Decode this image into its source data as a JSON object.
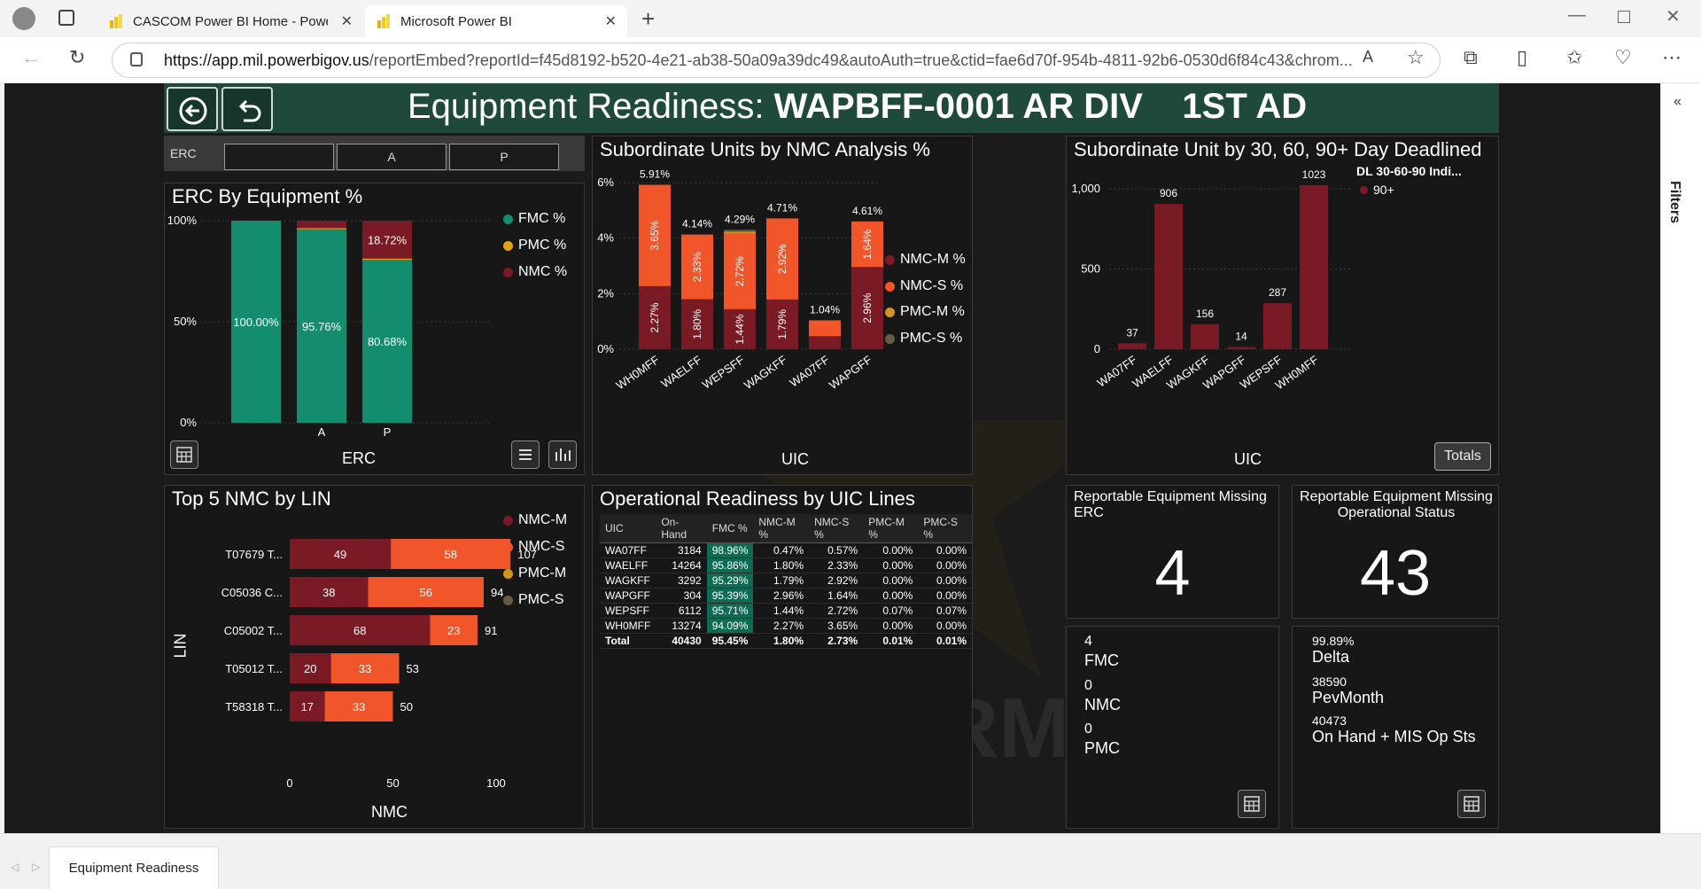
{
  "browser": {
    "tabs": [
      {
        "title": "CASCOM Power BI Home - Power BI"
      },
      {
        "title": "Microsoft Power BI"
      }
    ],
    "url_host": "https://app.mil.powerbigov.us",
    "url_path": "/reportEmbed?reportId=f45d8192-b520-4e21-ab38-50a09a39dc49&autoAuth=true&ctid=fae6d70f-954b-4811-92b6-0530d6f84c43&chrom..."
  },
  "report": {
    "title_prefix": "Equipment Readiness: ",
    "title_bold": "WAPBFF-0001 AR DIV",
    "title_unit": "1ST AD",
    "filters_label": "Filters",
    "page_tab": "Equipment Readiness"
  },
  "colors": {
    "fmc": "#148c6e",
    "pmc": "#e6a11e",
    "nmc": "#7a1a24",
    "nmc_m": "#7a1a24",
    "nmc_s": "#f0562a",
    "pmc_m": "#d4941a",
    "pmc_s": "#6b5a42",
    "header": "#1f4a3a"
  },
  "erc_slicer": {
    "label": "ERC",
    "options": [
      "",
      "A",
      "P"
    ]
  },
  "erc_by_equipment": {
    "title": "ERC By Equipment %",
    "xlabel": "ERC",
    "legend": [
      "FMC %",
      "PMC %",
      "NMC %"
    ],
    "y_ticks": [
      "100%",
      "50%",
      "0%"
    ]
  },
  "subordinate_nmc": {
    "title": "Subordinate Units by NMC Analysis %",
    "xlabel": "UIC",
    "legend": [
      "NMC-M %",
      "NMC-S %",
      "PMC-M %",
      "PMC-S %"
    ],
    "y_ticks": [
      "6%",
      "4%",
      "2%",
      "0%"
    ]
  },
  "deadlined": {
    "title": "Subordinate Unit by 30, 60, 90+ Day Deadlined",
    "legend_title": "DL 30-60-90 Indi...",
    "legend": [
      "90+"
    ],
    "xlabel": "UIC",
    "y_ticks": [
      "1,000",
      "500",
      "0"
    ],
    "button": "Totals"
  },
  "top5": {
    "title": "Top 5 NMC by LIN",
    "ylabel": "LIN",
    "xlabel": "NMC",
    "legend": [
      "NMC-M",
      "NMC-S",
      "PMC-M",
      "PMC-S"
    ],
    "x_ticks": [
      "0",
      "50",
      "100"
    ]
  },
  "ops_table": {
    "title": "Operational Readiness by UIC Lines",
    "headers": [
      "UIC",
      "On-Hand",
      "FMC %",
      "NMC-M %",
      "NMC-S %",
      "PMC-M %",
      "PMC-S %"
    ],
    "rows": [
      [
        "WA07FF",
        "3184",
        "98.96%",
        "0.47%",
        "0.57%",
        "0.00%",
        "0.00%"
      ],
      [
        "WAELFF",
        "14264",
        "95.86%",
        "1.80%",
        "2.33%",
        "0.00%",
        "0.00%"
      ],
      [
        "WAGKFF",
        "3292",
        "95.29%",
        "1.79%",
        "2.92%",
        "0.00%",
        "0.00%"
      ],
      [
        "WAPGFF",
        "304",
        "95.39%",
        "2.96%",
        "1.64%",
        "0.00%",
        "0.00%"
      ],
      [
        "WEPSFF",
        "6112",
        "95.71%",
        "1.44%",
        "2.72%",
        "0.07%",
        "0.07%"
      ],
      [
        "WH0MFF",
        "13274",
        "94.09%",
        "2.27%",
        "3.65%",
        "0.00%",
        "0.00%"
      ]
    ],
    "total": [
      "Total",
      "40430",
      "95.45%",
      "1.80%",
      "2.73%",
      "0.01%",
      "0.01%"
    ]
  },
  "cards": {
    "missing_erc_title": "Reportable Equipment Missing ERC",
    "missing_erc_value": "4",
    "missing_status_title": "Reportable Equipment Missing Operational Status",
    "missing_status_value": "43",
    "status_list": [
      {
        "value": "4",
        "label": "FMC"
      },
      {
        "value": "0",
        "label": "NMC"
      },
      {
        "value": "0",
        "label": "PMC"
      }
    ],
    "delta_list": [
      {
        "value": "99.89%",
        "label": "Delta"
      },
      {
        "value": "38590",
        "label": "PevMonth"
      },
      {
        "value": "40473",
        "label": "On Hand + MIS Op Sts"
      }
    ]
  },
  "chart_data": [
    {
      "type": "bar",
      "title": "ERC By Equipment %",
      "xlabel": "ERC",
      "categories": [
        "",
        "A",
        "P"
      ],
      "ylim": [
        0,
        100
      ],
      "series": [
        {
          "name": "FMC %",
          "values": [
            100.0,
            95.76,
            80.68
          ]
        },
        {
          "name": "PMC %",
          "values": [
            0,
            0.6,
            0.6
          ]
        },
        {
          "name": "NMC %",
          "values": [
            0,
            3.64,
            18.72
          ]
        }
      ],
      "labels": [
        {
          "cat": 0,
          "series": "FMC %",
          "text": "100.00%"
        },
        {
          "cat": 1,
          "series": "FMC %",
          "text": "95.76%"
        },
        {
          "cat": 2,
          "series": "FMC %",
          "text": "80.68%"
        },
        {
          "cat": 2,
          "series": "NMC %",
          "text": "18.72%"
        }
      ]
    },
    {
      "type": "bar",
      "title": "Subordinate Units by NMC Analysis %",
      "xlabel": "UIC",
      "categories": [
        "WH0MFF",
        "WAELFF",
        "WEPSFF",
        "WAGKFF",
        "WA07FF",
        "WAPGFF"
      ],
      "ylim": [
        0,
        6
      ],
      "series": [
        {
          "name": "NMC-M %",
          "values": [
            2.27,
            1.8,
            1.44,
            1.79,
            0.47,
            2.96
          ]
        },
        {
          "name": "NMC-S %",
          "values": [
            3.65,
            2.33,
            2.72,
            2.92,
            0.57,
            1.64
          ]
        },
        {
          "name": "PMC-M %",
          "values": [
            0,
            0,
            0.07,
            0,
            0,
            0
          ]
        },
        {
          "name": "PMC-S %",
          "values": [
            0,
            0,
            0.07,
            0,
            0,
            0
          ]
        }
      ],
      "totals": [
        "5.91%",
        "4.14%",
        "4.29%",
        "4.71%",
        "1.04%",
        "4.61%"
      ],
      "inner_labels": [
        [
          "2.27%",
          "3.65%"
        ],
        [
          "1.80%",
          "2.33%"
        ],
        [
          "1.44%",
          "2.72%"
        ],
        [
          "1.79%",
          "2.92%"
        ],
        [
          "",
          ""
        ],
        [
          "2.96%",
          "1.64%"
        ]
      ]
    },
    {
      "type": "bar",
      "title": "Subordinate Unit by 30, 60, 90+ Day Deadlined",
      "xlabel": "UIC",
      "categories": [
        "WA07FF",
        "WAELFF",
        "WAGKFF",
        "WAPGFF",
        "WEPSFF",
        "WH0MFF"
      ],
      "ylim": [
        0,
        1050
      ],
      "series": [
        {
          "name": "90+",
          "values": [
            37,
            906,
            156,
            14,
            287,
            1023
          ]
        }
      ]
    },
    {
      "type": "bar",
      "title": "Top 5 NMC by LIN",
      "xlabel": "NMC",
      "ylabel": "LIN",
      "categories": [
        "T07679 T...",
        "C05036 C...",
        "C05002 T...",
        "T05012 T...",
        "T58318 T..."
      ],
      "xlim": [
        0,
        110
      ],
      "series": [
        {
          "name": "NMC-M",
          "values": [
            49,
            38,
            68,
            20,
            17
          ]
        },
        {
          "name": "NMC-S",
          "values": [
            58,
            56,
            23,
            33,
            33
          ]
        }
      ],
      "totals": [
        107,
        94,
        91,
        53,
        50
      ]
    }
  ]
}
